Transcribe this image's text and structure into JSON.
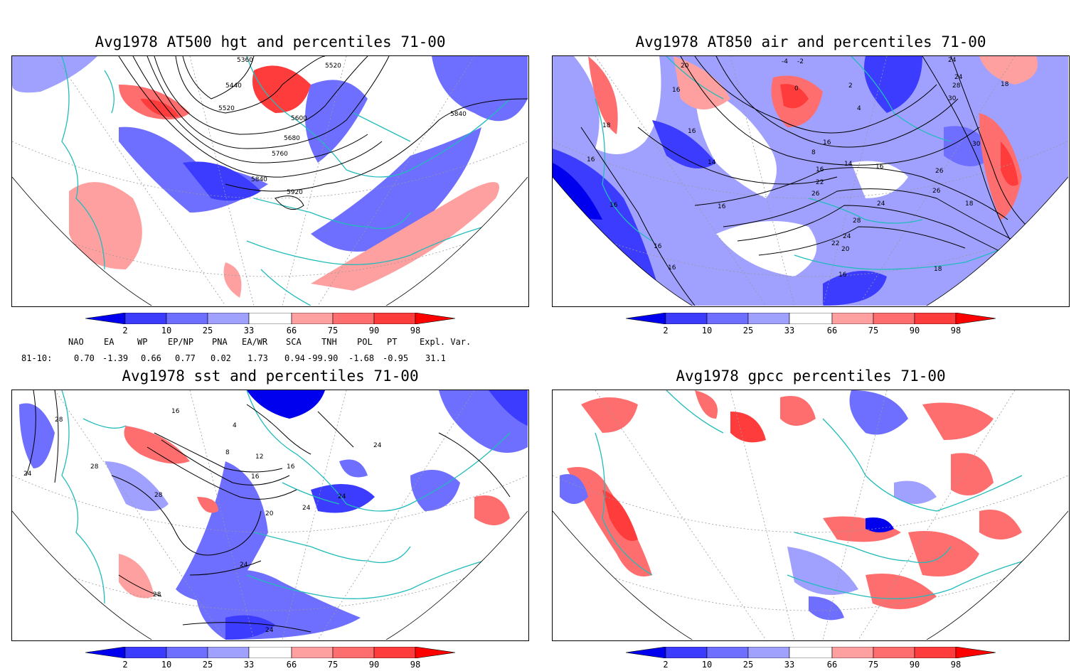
{
  "panels": [
    {
      "id": "hgt",
      "title": "Avg1978 AT500 hgt and percentiles 71-00",
      "contour_labels": [
        "5360",
        "5520",
        "5440",
        "5520",
        "5600",
        "5840",
        "5680",
        "5760",
        "5840",
        "5920"
      ]
    },
    {
      "id": "air",
      "title": "Avg1978 AT850 air and percentiles 71-00",
      "contour_labels": [
        "20",
        "-4",
        "-2",
        "24",
        "24",
        "28",
        "16",
        "18",
        "0",
        "2",
        "30",
        "18",
        "16",
        "4",
        "16",
        "14",
        "8",
        "14",
        "30",
        "16",
        "16",
        "26",
        "26",
        "16",
        "22",
        "26",
        "24",
        "18",
        "16",
        "16",
        "28",
        "24",
        "22",
        "20",
        "16",
        "16",
        "18",
        "16"
      ]
    },
    {
      "id": "sst",
      "title": "Avg1978 sst and percentiles 71-00",
      "contour_labels": [
        "28",
        "24",
        "16",
        "4",
        "8",
        "12",
        "16",
        "16",
        "28",
        "20",
        "24",
        "24",
        "24",
        "28",
        "24",
        "28",
        "24"
      ]
    },
    {
      "id": "gpcc",
      "title": "Avg1978 gpcc percentiles 71-00",
      "contour_labels": []
    }
  ],
  "colorbar": {
    "ticks": [
      "2",
      "10",
      "25",
      "33",
      "66",
      "75",
      "90",
      "98"
    ],
    "colors": [
      "#0000ee",
      "#3c3cff",
      "#6e6eff",
      "#a0a0ff",
      "#ffffff",
      "#ffa0a0",
      "#ff6e6e",
      "#ff3c3c",
      "#ff0000"
    ]
  },
  "indices": {
    "headers": [
      "NAO",
      "EA",
      "WP",
      "EP/NP",
      "PNA",
      "EA/WR",
      "SCA",
      "TNH",
      "POL",
      "PT",
      "Expl. Var."
    ],
    "row_label": "81-10:",
    "values": [
      "0.70",
      "-1.39",
      "0.66",
      "0.77",
      "0.02",
      "1.73",
      "0.94",
      "-99.90",
      "-1.68",
      "-0.95",
      "31.1"
    ]
  },
  "colors": {
    "coastline": "#22bbbb",
    "graticule": "#999999",
    "contour": "#000000"
  }
}
